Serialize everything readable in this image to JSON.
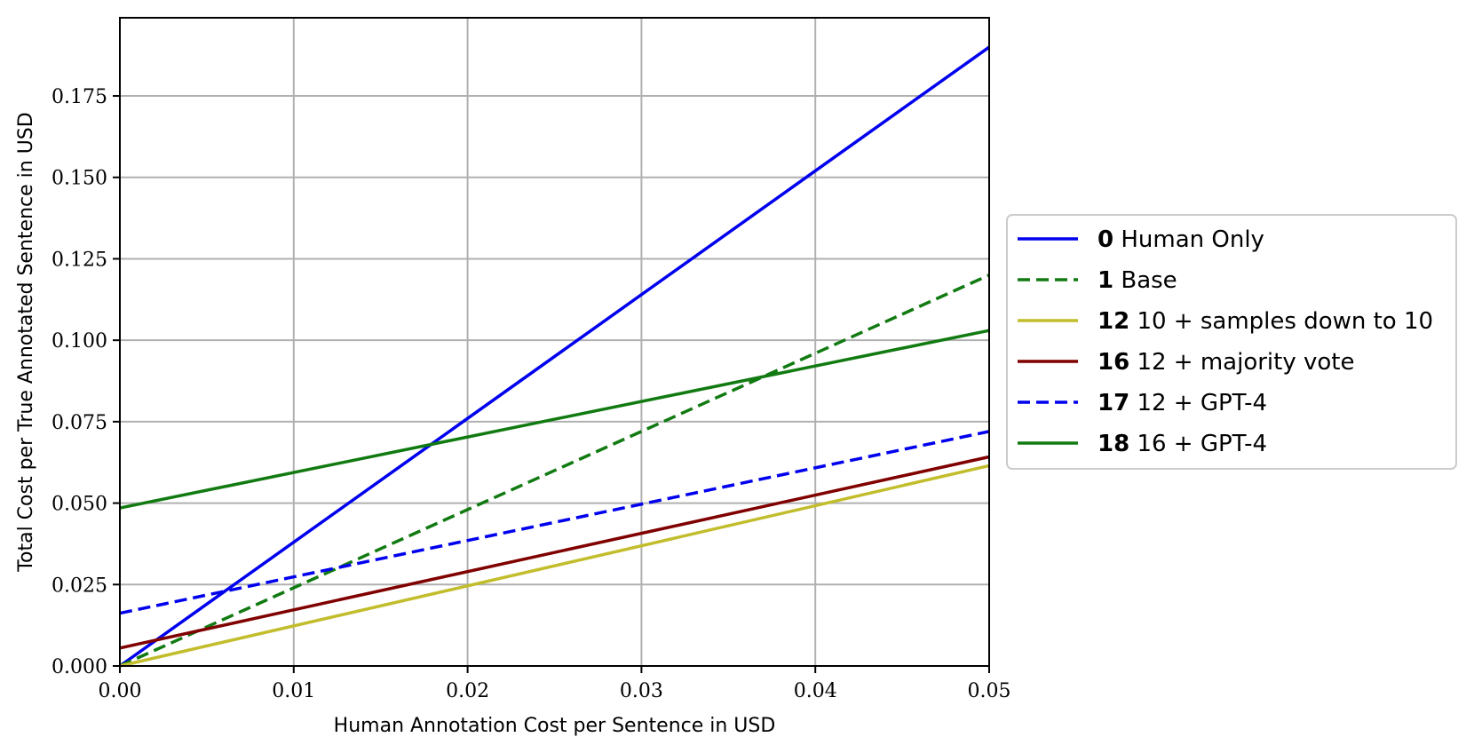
{
  "chart_data": {
    "type": "line",
    "xlabel": "Human Annotation Cost per Sentence in USD",
    "ylabel": "Total Cost per True Annotated Sentence in USD",
    "xlim": [
      0,
      0.05
    ],
    "ylim": [
      0,
      0.199
    ],
    "xticks": [
      0.0,
      0.01,
      0.02,
      0.03,
      0.04,
      0.05
    ],
    "yticks": [
      0.0,
      0.025,
      0.05,
      0.075,
      0.1,
      0.125,
      0.15,
      0.175
    ],
    "xtick_labels": [
      "0.00",
      "0.01",
      "0.02",
      "0.03",
      "0.04",
      "0.05"
    ],
    "ytick_labels": [
      "0.000",
      "0.025",
      "0.050",
      "0.075",
      "0.100",
      "0.125",
      "0.150",
      "0.175"
    ],
    "grid": true,
    "legend_position": "outside-right",
    "series": [
      {
        "name": "Human Only",
        "id": "0",
        "color": "#0000ee",
        "dash": "solid",
        "x": [
          0,
          0.05
        ],
        "y": [
          0.0,
          0.19
        ]
      },
      {
        "name": "Base",
        "id": "1",
        "color": "#117a11",
        "dash": "dashed",
        "x": [
          0,
          0.05
        ],
        "y": [
          0.0,
          0.12
        ]
      },
      {
        "name": "10 + samples down to 10",
        "id": "12",
        "color": "#c2bd2c",
        "dash": "solid",
        "x": [
          0,
          0.05
        ],
        "y": [
          0.0,
          0.0615
        ]
      },
      {
        "name": "12 + majority vote",
        "id": "16",
        "color": "#800000",
        "dash": "solid",
        "x": [
          0,
          0.05
        ],
        "y": [
          0.0055,
          0.0642
        ]
      },
      {
        "name": "12 + GPT-4",
        "id": "17",
        "color": "#0000ee",
        "dash": "dashed",
        "x": [
          0,
          0.05
        ],
        "y": [
          0.0162,
          0.072
        ]
      },
      {
        "name": "16 + GPT-4",
        "id": "18",
        "color": "#117a11",
        "dash": "solid",
        "x": [
          0,
          0.05
        ],
        "y": [
          0.0485,
          0.103
        ]
      }
    ]
  }
}
